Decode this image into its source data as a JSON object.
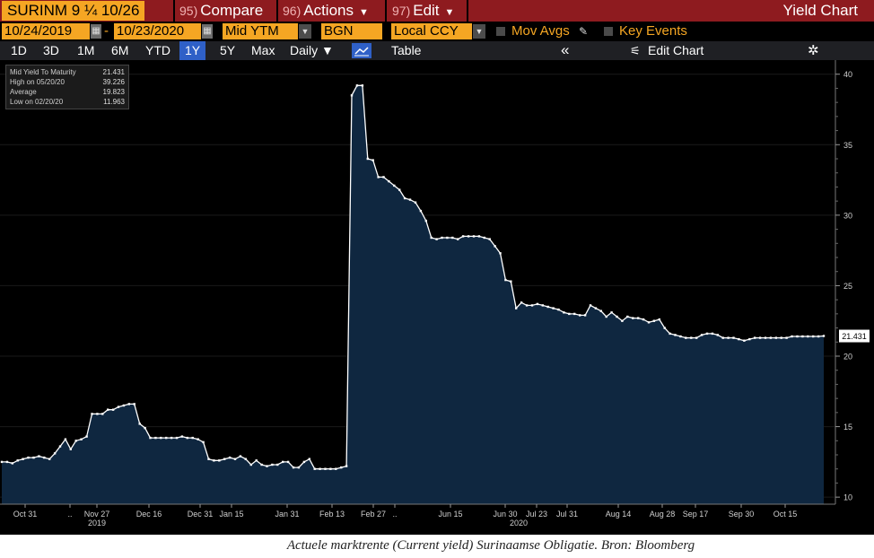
{
  "toolbar": {
    "ticker": "SURINM 9 ¼ 10/26",
    "menus": [
      {
        "num": "95)",
        "label": "Compare"
      },
      {
        "num": "96)",
        "label": "Actions"
      },
      {
        "num": "97)",
        "label": "Edit"
      }
    ],
    "title": "Yield Chart"
  },
  "params": {
    "start_date": "10/24/2019",
    "dash": "-",
    "end_date": "10/23/2020",
    "field": "Mid YTM",
    "source": "BGN",
    "currency": "Local CCY",
    "mov_avgs": "Mov Avgs",
    "key_events": "Key Events"
  },
  "ranges": {
    "items": [
      "1D",
      "3D",
      "1M",
      "6M",
      "YTD",
      "1Y",
      "5Y",
      "Max"
    ],
    "active": "1Y",
    "frequency": "Daily ▼",
    "table": "Table",
    "collapse": "«",
    "edit_chart": "Edit Chart"
  },
  "legend": {
    "rows": [
      {
        "label": "Mid Yield To Maturity",
        "value": "21.431"
      },
      {
        "label": "High on 05/20/20",
        "value": "39.226"
      },
      {
        "label": "Average",
        "value": "19.823"
      },
      {
        "label": "Low on 02/20/20",
        "value": "11.963"
      }
    ]
  },
  "colors": {
    "fill": "#0f2740",
    "line": "#ffffff",
    "background": "#000000",
    "toolbar": "#8e1b1f",
    "accent": "#f5a623"
  },
  "chart_data": {
    "type": "area",
    "title": "",
    "ylim": [
      9.5,
      41
    ],
    "yticks": [
      10,
      15,
      20,
      25,
      30,
      35,
      40
    ],
    "last_value_label": "21.431",
    "x_tick_labels": [
      "Oct 31",
      "..",
      "Nov 27",
      "Dec 16",
      "Dec 31",
      "Jan 15",
      "Jan 31",
      "Feb 13",
      "Feb 27",
      "..",
      "Jun 15",
      "Jun 30",
      "Jul 23",
      "Jul 31",
      "Aug 14",
      "Aug 28",
      "Sep 17",
      "Sep 30",
      "Oct 15"
    ],
    "x_tick_pos": [
      28,
      78,
      108,
      166,
      223,
      258,
      320,
      370,
      416,
      440,
      502,
      563,
      598,
      632,
      689,
      738,
      775,
      826,
      875
    ],
    "year_labels": [
      {
        "text": "2019",
        "pos": 108
      },
      {
        "text": "2020",
        "pos": 578
      }
    ],
    "series": [
      {
        "values": [
          12.5,
          12.5,
          12.4,
          12.6,
          12.7,
          12.8,
          12.8,
          12.9,
          12.8,
          12.7,
          13.1,
          13.6,
          14.1,
          13.4,
          14.0,
          14.1,
          14.3,
          15.9,
          15.9,
          15.9,
          16.2,
          16.2,
          16.4,
          16.5,
          16.6,
          16.6,
          15.2,
          14.9,
          14.2,
          14.2,
          14.2,
          14.2,
          14.2,
          14.2,
          14.3,
          14.2,
          14.2,
          14.1,
          13.9,
          12.7,
          12.6,
          12.6,
          12.7,
          12.8,
          12.7,
          12.9,
          12.7,
          12.3,
          12.6,
          12.3,
          12.2,
          12.3,
          12.3,
          12.5,
          12.5,
          12.1,
          12.1,
          12.5,
          12.7,
          12.0,
          12.0,
          12.0,
          12.0,
          12.0,
          12.1,
          12.2,
          38.5,
          39.2,
          39.2,
          34.0,
          33.9,
          32.7,
          32.7,
          32.4,
          32.1,
          31.8,
          31.2,
          31.1,
          30.9,
          30.3,
          29.6,
          28.4,
          28.3,
          28.4,
          28.4,
          28.4,
          28.3,
          28.5,
          28.5,
          28.5,
          28.5,
          28.4,
          28.3,
          27.8,
          27.3,
          25.4,
          25.3,
          23.4,
          23.8,
          23.6,
          23.6,
          23.7,
          23.6,
          23.5,
          23.4,
          23.3,
          23.1,
          23.0,
          23.0,
          22.9,
          22.9,
          23.6,
          23.4,
          23.2,
          22.8,
          23.1,
          22.8,
          22.5,
          22.8,
          22.7,
          22.7,
          22.6,
          22.4,
          22.5,
          22.6,
          22.0,
          21.6,
          21.5,
          21.4,
          21.3,
          21.3,
          21.3,
          21.5,
          21.6,
          21.6,
          21.5,
          21.3,
          21.3,
          21.3,
          21.2,
          21.1,
          21.2,
          21.3,
          21.3,
          21.3,
          21.3,
          21.3,
          21.3,
          21.3,
          21.4,
          21.4,
          21.4,
          21.4,
          21.4,
          21.4,
          21.43
        ]
      }
    ]
  },
  "caption": "Actuele marktrente (Current yield) Surinaamse Obligatie. Bron: Bloomberg"
}
